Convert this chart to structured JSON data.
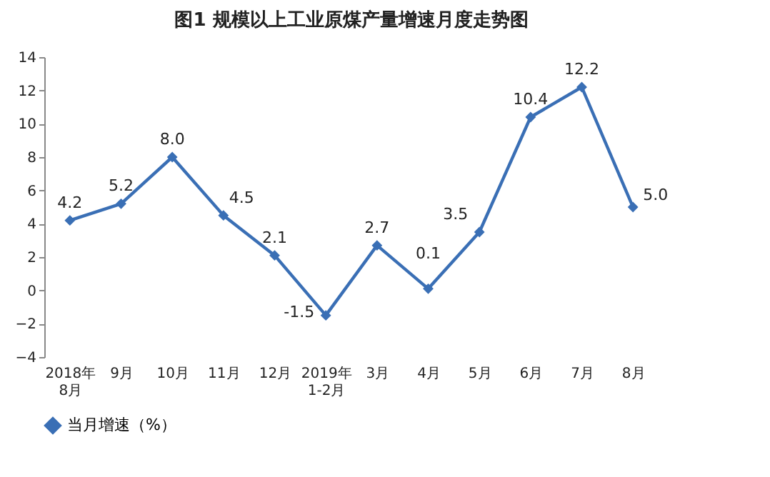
{
  "chart_data": {
    "type": "line",
    "title": "图1  规模以上工业原煤产量增速月度走势图",
    "categories": [
      "2018年\n8月",
      "9月",
      "10月",
      "11月",
      "12月",
      "2019年\n1-2月",
      "3月",
      "4月",
      "5月",
      "6月",
      "7月",
      "8月"
    ],
    "series": [
      {
        "name": "当月增速（%）",
        "color": "#3a6fb5",
        "values": [
          4.2,
          5.2,
          8.0,
          4.5,
          2.1,
          -1.5,
          2.7,
          0.1,
          3.5,
          10.4,
          12.2,
          5.0
        ],
        "value_labels": [
          "4.2",
          "5.2",
          "8.0",
          "4.5",
          "2.1",
          "-1.5",
          "2.7",
          "0.1",
          "3.5",
          "10.4",
          "12.2",
          "5.0"
        ]
      }
    ],
    "ylim": [
      -4,
      14
    ],
    "yticks": [
      -4,
      -2,
      0,
      2,
      4,
      6,
      8,
      10,
      12,
      14
    ],
    "grid": false,
    "legend": "bottom",
    "marker": "diamond",
    "line_style": "solid"
  }
}
